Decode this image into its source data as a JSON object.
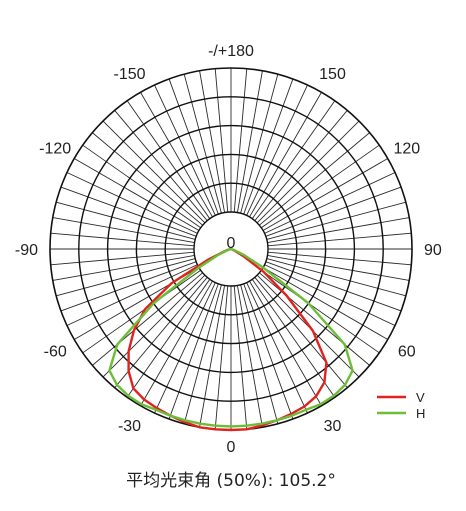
{
  "chart_data": {
    "type": "polar",
    "angle_labels": [
      {
        "deg": 180,
        "text": "-/+180"
      },
      {
        "deg": 150,
        "text": "150"
      },
      {
        "deg": -150,
        "text": "-150"
      },
      {
        "deg": 120,
        "text": "120"
      },
      {
        "deg": -120,
        "text": "-120"
      },
      {
        "deg": 90,
        "text": "90"
      },
      {
        "deg": -90,
        "text": "-90"
      },
      {
        "deg": 60,
        "text": "60"
      },
      {
        "deg": -60,
        "text": "-60"
      },
      {
        "deg": 30,
        "text": "30"
      },
      {
        "deg": -30,
        "text": "-30"
      },
      {
        "deg": 0,
        "text": "0"
      }
    ],
    "center_label": "0",
    "rings": [
      0.2,
      0.4,
      0.6,
      0.8,
      1.0
    ],
    "spoke_step_deg": 5,
    "series": [
      {
        "name": "V",
        "color": "#e0231e",
        "points": [
          [
            -80,
            0.0
          ],
          [
            -75,
            0.02
          ],
          [
            -70,
            0.04
          ],
          [
            -65,
            0.14
          ],
          [
            -60,
            0.38
          ],
          [
            -55,
            0.58
          ],
          [
            -50,
            0.7
          ],
          [
            -45,
            0.8
          ],
          [
            -40,
            0.88
          ],
          [
            -35,
            0.94
          ],
          [
            -30,
            0.96
          ],
          [
            -25,
            0.97
          ],
          [
            -20,
            0.98
          ],
          [
            -15,
            0.99
          ],
          [
            -10,
            1.0
          ],
          [
            -5,
            1.0
          ],
          [
            0,
            1.0
          ],
          [
            5,
            1.0
          ],
          [
            10,
            0.99
          ],
          [
            15,
            0.98
          ],
          [
            20,
            0.97
          ],
          [
            25,
            0.96
          ],
          [
            30,
            0.94
          ],
          [
            35,
            0.9
          ],
          [
            40,
            0.82
          ],
          [
            45,
            0.64
          ],
          [
            50,
            0.4
          ],
          [
            55,
            0.22
          ],
          [
            60,
            0.08
          ],
          [
            65,
            0.02
          ],
          [
            70,
            0.0
          ]
        ]
      },
      {
        "name": "H",
        "color": "#6cbd38",
        "points": [
          [
            -75,
            0.0
          ],
          [
            -70,
            0.02
          ],
          [
            -65,
            0.08
          ],
          [
            -60,
            0.2
          ],
          [
            -55,
            0.52
          ],
          [
            -50,
            0.82
          ],
          [
            -45,
            0.95
          ],
          [
            -40,
            0.98
          ],
          [
            -35,
            0.99
          ],
          [
            -30,
            0.99
          ],
          [
            -25,
            0.98
          ],
          [
            -20,
            0.98
          ],
          [
            -15,
            0.98
          ],
          [
            -10,
            0.98
          ],
          [
            -5,
            0.98
          ],
          [
            0,
            0.98
          ],
          [
            5,
            0.98
          ],
          [
            10,
            0.98
          ],
          [
            15,
            0.98
          ],
          [
            20,
            0.98
          ],
          [
            25,
            0.98
          ],
          [
            30,
            0.99
          ],
          [
            35,
            0.99
          ],
          [
            40,
            0.98
          ],
          [
            45,
            0.95
          ],
          [
            50,
            0.82
          ],
          [
            55,
            0.52
          ],
          [
            60,
            0.2
          ],
          [
            65,
            0.08
          ],
          [
            70,
            0.02
          ],
          [
            75,
            0.0
          ]
        ]
      }
    ],
    "legend": [
      {
        "name": "V",
        "color": "#e0231e"
      },
      {
        "name": "H",
        "color": "#6cbd38"
      }
    ],
    "legend_position": "bottom-right",
    "caption": "平均光束角 (50%): 105.2°"
  }
}
